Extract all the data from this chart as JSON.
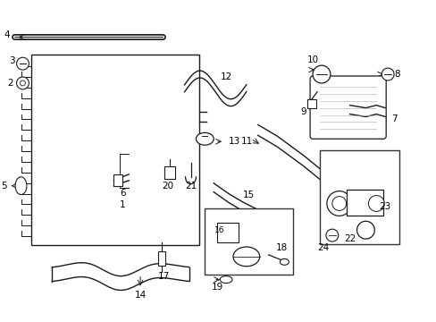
{
  "title": "",
  "bg_color": "#ffffff",
  "fig_width": 4.89,
  "fig_height": 3.6,
  "dpi": 100,
  "line_color": "#1a1a1a",
  "label_color": "#000000",
  "label_fontsize": 7.5,
  "hatch_color": "#555555",
  "box_color": "#333333"
}
